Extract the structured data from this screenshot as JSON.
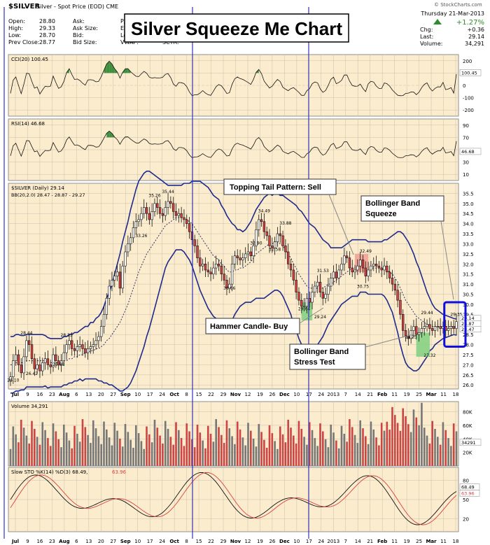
{
  "header": {
    "symbol": "$SILVER",
    "description": "Silver - Spot Price (EOD) CME",
    "credit": "© StockCharts.com",
    "date": "Thursday 21-Mar-2013",
    "pct_change": "+1.27%",
    "chg_label": "Chg:",
    "chg_value": "+0.36",
    "last_label": "Last:",
    "last_value": "29.14",
    "volume_label": "Volume:",
    "volume_value": "34,291",
    "left_stats": [
      {
        "label": "Open:",
        "value": "28.80"
      },
      {
        "label": "High:",
        "value": "29.33"
      },
      {
        "label": "Low:",
        "value": "28.70"
      },
      {
        "label": "Prev Close:",
        "value": "28.77"
      }
    ],
    "mid_labels": [
      "Ask:",
      "Ask Size:",
      "Bid:",
      "Bid Size:"
    ],
    "mid2_labels": [
      "P/E",
      "EPS",
      "Lo",
      "VWAP:"
    ],
    "sctr_label": "SCTR:"
  },
  "title_box": "Silver Squeeze Me Chart",
  "colors": {
    "panel_bg": "#fbeccd",
    "grid": "#c8bfae",
    "up_candle": "#ffffff",
    "down_candle": "#d94040",
    "bands": "#1e2a8c",
    "positive_fill": "#3f8f3f",
    "negative_fill": "#a05040",
    "vline": "#3333bb",
    "annotation_fill": "#ffffff"
  },
  "chart_data": {
    "type": "line",
    "x_tick_labels": [
      "Jul",
      "9",
      "16",
      "23",
      "Aug",
      "6",
      "13",
      "20",
      "27",
      "Sep",
      "10",
      "17",
      "24",
      "Oct",
      "8",
      "15",
      "22",
      "29",
      "Nov",
      "12",
      "19",
      "26",
      "Dec",
      "10",
      "17",
      "24",
      "2013",
      "7",
      "14",
      "21",
      "Feb",
      "11",
      "19",
      "25",
      "Mar",
      "11",
      "18"
    ],
    "panels": [
      {
        "name": "cci",
        "label": "CCI(20) 100.45",
        "y_ticks": [
          200,
          100,
          0,
          -100,
          -200
        ],
        "last_value_label": "100.45",
        "ylim": [
          -250,
          250
        ]
      },
      {
        "name": "rsi",
        "label": "RSI(14) 46.68",
        "y_ticks": [
          90,
          70,
          50,
          30,
          10
        ],
        "last_value_label": "46.68",
        "ylim": [
          0,
          100
        ]
      },
      {
        "name": "price",
        "label": "$SILVER (Daily) 29.14",
        "legend": "BB(20,2.0) 28.47 - 28.87 - 29.27",
        "y_ticks": [
          35.5,
          35.0,
          34.5,
          34.0,
          33.5,
          33.0,
          32.5,
          32.0,
          31.5,
          31.0,
          30.5,
          30.0,
          29.5,
          29.0,
          28.5,
          28.0,
          27.5,
          27.0,
          26.5,
          26.0
        ],
        "ylim": [
          25.8,
          36.0
        ],
        "right_value_labels": [
          "29.14",
          "28.87",
          "28.47"
        ],
        "price_labels": [
          {
            "x": 1,
            "y": 26.1,
            "text": "26.10"
          },
          {
            "x": 6,
            "y": 28.44,
            "text": "28.44"
          },
          {
            "x": 8,
            "y": 26.42,
            "text": "26.42"
          },
          {
            "x": 18,
            "y": 26.88,
            "text": "26.88"
          },
          {
            "x": 21,
            "y": 28.33,
            "text": "28.33"
          },
          {
            "x": 54,
            "y": 35.26,
            "text": "35.26"
          },
          {
            "x": 59,
            "y": 35.44,
            "text": "35.44"
          },
          {
            "x": 49,
            "y": 33.26,
            "text": "33.26"
          },
          {
            "x": 82,
            "y": 30.66,
            "text": "30.66"
          },
          {
            "x": 95,
            "y": 34.49,
            "text": "34.49"
          },
          {
            "x": 92,
            "y": 32.9,
            "text": "32.90"
          },
          {
            "x": 103,
            "y": 33.88,
            "text": "33.88"
          },
          {
            "x": 99,
            "y": 32.58,
            "text": "32.58"
          },
          {
            "x": 117,
            "y": 31.53,
            "text": "31.53"
          },
          {
            "x": 110,
            "y": 29.64,
            "text": "29.64"
          },
          {
            "x": 116,
            "y": 29.24,
            "text": "29.24"
          },
          {
            "x": 133,
            "y": 32.49,
            "text": "32.49"
          },
          {
            "x": 132,
            "y": 30.75,
            "text": "30.75"
          },
          {
            "x": 156,
            "y": 29.44,
            "text": "29.44"
          },
          {
            "x": 167,
            "y": 29.35,
            "text": "29.35"
          },
          {
            "x": 150,
            "y": 28.25,
            "text": "28.25"
          },
          {
            "x": 157,
            "y": 27.32,
            "text": "27.32"
          }
        ],
        "series": [
          {
            "kind": "close",
            "values": [
              26.4,
              27.2,
              27.5,
              27.0,
              26.6,
              27.4,
              28.2,
              28.0,
              27.3,
              26.8,
              27.0,
              26.7,
              27.1,
              27.3,
              27.0,
              26.9,
              27.5,
              27.2,
              27.0,
              27.2,
              27.6,
              28.0,
              28.2,
              27.8,
              27.7,
              27.9,
              28.0,
              27.8,
              27.6,
              27.8,
              27.9,
              28.0,
              28.2,
              28.4,
              28.9,
              29.5,
              30.3,
              30.9,
              31.2,
              31.4,
              31.6,
              30.8,
              31.9,
              32.6,
              33.0,
              33.3,
              33.8,
              34.1,
              34.2,
              34.5,
              34.8,
              34.5,
              34.2,
              34.6,
              35.0,
              34.8,
              34.5,
              34.4,
              34.8,
              35.1,
              35.0,
              34.6,
              34.4,
              34.5,
              34.3,
              34.2,
              34.0,
              33.6,
              33.2,
              32.9,
              32.3,
              31.9,
              32.0,
              31.7,
              31.6,
              31.5,
              31.8,
              32.0,
              31.9,
              31.5,
              31.2,
              30.8,
              31.0,
              32.0,
              32.4,
              32.3,
              32.2,
              32.3,
              32.5,
              32.6,
              32.4,
              32.9,
              33.7,
              34.2,
              34.1,
              33.6,
              33.4,
              32.9,
              32.8,
              33.1,
              33.5,
              33.4,
              32.9,
              32.6,
              32.0,
              31.7,
              31.2,
              30.6,
              30.2,
              29.9,
              29.9,
              30.3,
              30.1,
              30.6,
              30.9,
              31.1,
              30.6,
              30.3,
              30.5,
              30.9,
              31.3,
              31.6,
              31.3,
              31.7,
              32.0,
              32.4,
              32.3,
              31.8,
              31.6,
              31.7,
              31.9,
              32.2,
              31.8,
              31.4,
              31.7,
              31.9,
              32.0,
              31.9,
              31.8,
              31.7,
              31.9,
              31.6,
              31.3,
              31.0,
              30.7,
              30.2,
              29.5,
              28.7,
              28.4,
              28.3,
              28.7,
              28.9,
              28.5,
              28.6,
              28.8,
              28.9,
              29.0,
              28.8,
              28.7,
              28.9,
              28.9,
              28.8,
              28.9,
              28.7,
              28.8,
              28.9,
              28.8,
              29.14
            ],
            "mid_band": [
              27.0,
              27.0,
              27.1,
              27.1,
              27.1,
              27.1,
              27.2,
              27.2,
              27.2,
              27.2,
              27.2,
              27.2,
              27.2,
              27.2,
              27.1,
              27.1,
              27.1,
              27.1,
              27.1,
              27.1,
              27.2,
              27.2,
              27.3,
              27.3,
              27.4,
              27.4,
              27.5,
              27.5,
              27.6,
              27.6,
              27.7,
              27.7,
              27.8,
              27.8,
              27.9,
              28.0,
              28.2,
              28.3,
              28.5,
              28.7,
              28.9,
              29.1,
              29.4,
              29.7,
              30.0,
              30.4,
              30.8,
              31.2,
              31.6,
              31.9,
              32.2,
              32.5,
              32.7,
              32.9,
              33.1,
              33.3,
              33.5,
              33.7,
              33.9,
              34.0,
              34.1,
              34.2,
              34.3,
              34.3,
              34.3,
              34.3,
              34.2,
              34.1,
              34.0,
              33.8,
              33.6,
              33.4,
              33.2,
              33.0,
              32.8,
              32.6,
              32.4,
              32.3,
              32.2,
              32.0,
              31.9,
              31.7,
              31.6,
              31.6,
              31.7,
              31.7,
              31.8,
              31.8,
              31.9,
              32.0,
              32.1,
              32.3,
              32.5,
              32.6,
              32.7,
              32.8,
              32.9,
              33.0,
              33.0,
              33.1,
              33.1,
              33.0,
              32.9,
              32.7,
              32.5,
              32.3,
              32.0,
              31.8,
              31.5,
              31.3,
              31.1,
              30.9,
              30.8,
              30.8,
              30.8,
              30.8,
              30.8,
              30.8,
              30.9,
              31.0,
              31.0,
              31.1,
              31.2,
              31.3,
              31.4,
              31.5,
              31.6,
              31.7,
              31.8,
              31.8,
              31.8,
              31.9,
              31.9,
              31.9,
              31.8,
              31.8,
              31.8,
              31.8,
              31.8,
              31.8,
              31.8,
              31.7,
              31.6,
              31.5,
              31.3,
              31.1,
              30.8,
              30.5,
              30.2,
              30.0,
              29.8,
              29.6,
              29.4,
              29.3,
              29.2,
              29.1,
              29.0,
              29.0,
              28.9,
              28.9,
              28.9,
              28.9,
              28.9,
              28.9,
              28.9,
              28.9,
              28.9,
              28.87
            ],
            "band_width": [
              1.4,
              1.4,
              1.4,
              1.4,
              1.35,
              1.35,
              1.3,
              1.3,
              1.3,
              1.3,
              1.3,
              1.3,
              1.3,
              1.25,
              1.25,
              1.2,
              1.2,
              1.2,
              1.2,
              1.2,
              1.2,
              1.2,
              1.2,
              1.2,
              1.2,
              1.2,
              1.2,
              1.3,
              1.3,
              1.3,
              1.4,
              1.4,
              1.5,
              1.6,
              1.7,
              1.9,
              2.1,
              2.3,
              2.5,
              2.8,
              3.1,
              3.4,
              3.7,
              3.9,
              4.1,
              4.3,
              4.4,
              4.5,
              4.5,
              4.4,
              4.3,
              4.1,
              3.9,
              3.6,
              3.3,
              3.0,
              2.7,
              2.4,
              2.1,
              1.9,
              1.8,
              1.7,
              1.6,
              1.6,
              1.6,
              1.7,
              1.8,
              1.9,
              2.1,
              2.3,
              2.5,
              2.7,
              2.8,
              2.9,
              3.0,
              3.0,
              3.0,
              3.0,
              3.0,
              2.9,
              2.8,
              2.7,
              2.6,
              2.4,
              2.2,
              2.0,
              1.9,
              1.8,
              1.8,
              1.9,
              2.0,
              2.1,
              2.2,
              2.3,
              2.4,
              2.5,
              2.5,
              2.5,
              2.4,
              2.4,
              2.4,
              2.4,
              2.5,
              2.6,
              2.7,
              2.8,
              3.0,
              3.1,
              3.2,
              3.3,
              3.3,
              3.3,
              3.2,
              3.1,
              3.0,
              2.8,
              2.6,
              2.4,
              2.2,
              2.0,
              1.8,
              1.7,
              1.6,
              1.5,
              1.4,
              1.4,
              1.4,
              1.4,
              1.4,
              1.4,
              1.4,
              1.3,
              1.3,
              1.3,
              1.3,
              1.3,
              1.3,
              1.3,
              1.3,
              1.3,
              1.4,
              1.5,
              1.7,
              1.9,
              2.2,
              2.5,
              2.8,
              3.0,
              3.1,
              3.1,
              3.0,
              2.9,
              2.7,
              2.5,
              2.2,
              1.9,
              1.6,
              1.3,
              1.1,
              0.9,
              0.8,
              0.7,
              0.6,
              0.55,
              0.5,
              0.45,
              0.4,
              0.4
            ]
          }
        ]
      },
      {
        "name": "volume",
        "label": "Volume 34,291",
        "y_ticks": [
          "80K",
          "60K",
          "40K",
          "20K"
        ],
        "last_value_label": "34291",
        "ylim": [
          0,
          95000
        ]
      },
      {
        "name": "sto",
        "label": "Slow STO %K(14) %D(3) 68.49,",
        "label_red": "63.96",
        "y_ticks": [
          80,
          50,
          20
        ],
        "last_value_labels": [
          "68.49",
          "63.96"
        ],
        "ylim": [
          0,
          100
        ]
      }
    ]
  },
  "annotations": [
    {
      "name": "topping-tail-label",
      "text": "Topping Tail Pattern: Sell"
    },
    {
      "name": "bollinger-squeeze-label",
      "line1": "Bollinger Band",
      "line2": "Squeeze"
    },
    {
      "name": "hammer-candle-label",
      "text": "Hammer Candle- Buy"
    },
    {
      "name": "bollinger-stress-label",
      "line1": "Bollinger Band",
      "line2": "Stress Test"
    }
  ]
}
